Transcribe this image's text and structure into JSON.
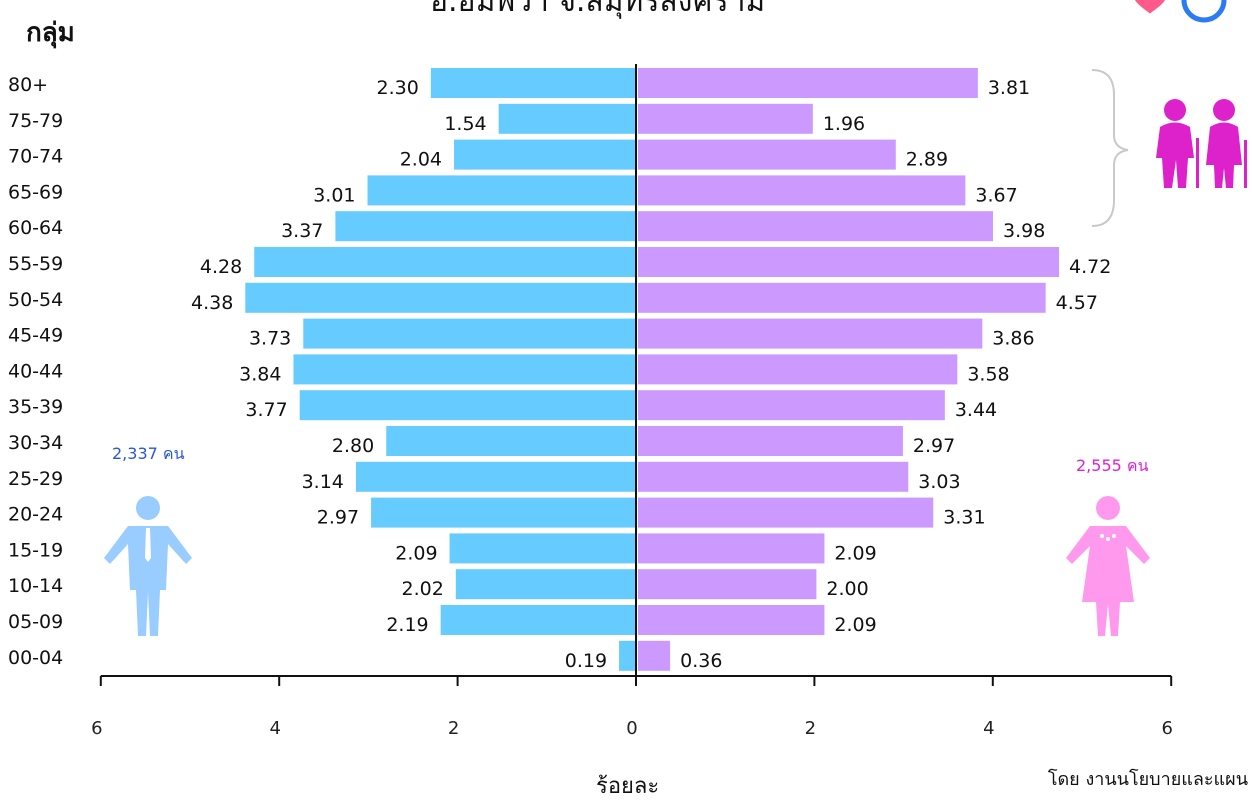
{
  "header": {
    "title": "อ.อัมพวา จ.สมุทรสงคราม",
    "group_label": "กลุ่ม"
  },
  "footer": {
    "credit": "โดย งานนโยบายและแผน"
  },
  "totals": {
    "male": "2,337 คน",
    "female": "2,555 คน",
    "male_color": "#2b57d6",
    "female_color": "#e21ed9"
  },
  "colors": {
    "male_bar": "#66ccff",
    "female_bar": "#cc99ff",
    "male_icon": "#99ccff",
    "female_icon": "#ff99ee",
    "elder_icon": "#dd22cc"
  },
  "icons": [
    "male-figure-icon",
    "female-figure-icon",
    "elderly-couple-icon",
    "heart-icon"
  ],
  "chart_data": {
    "type": "bar",
    "orientation": "horizontal",
    "subtype": "population-pyramid",
    "title": "อ.อัมพวา จ.สมุทรสงคราม",
    "ylabel": "กลุ่ม",
    "xlabel": "ร้อยละ",
    "xlim": [
      -6,
      6
    ],
    "x_ticks": [
      6,
      4,
      2,
      0,
      2,
      4,
      6
    ],
    "categories": [
      "80+",
      "75-79",
      "70-74",
      "65-69",
      "60-64",
      "55-59",
      "50-54",
      "45-49",
      "40-44",
      "35-39",
      "30-34",
      "25-29",
      "20-24",
      "15-19",
      "10-14",
      "05-09",
      "00-04"
    ],
    "series": [
      {
        "values": [
          2.3,
          1.54,
          2.04,
          3.01,
          3.37,
          4.28,
          4.38,
          3.73,
          3.84,
          3.77,
          2.8,
          3.14,
          2.97,
          2.09,
          2.02,
          2.19,
          0.19
        ]
      },
      {
        "values": [
          3.81,
          1.96,
          2.89,
          3.67,
          3.98,
          4.72,
          4.57,
          3.86,
          3.58,
          3.44,
          2.97,
          3.03,
          3.31,
          2.09,
          2.0,
          2.09,
          0.36
        ]
      }
    ],
    "value_labels": {
      "male": [
        "2.30",
        "1.54",
        "2.04",
        "3.01",
        "3.37",
        "4.28",
        "4.38",
        "3.73",
        "3.84",
        "3.77",
        "2.80",
        "3.14",
        "2.97",
        "2.09",
        "2.02",
        "2.19",
        "0.19"
      ],
      "female": [
        "3.81",
        "1.96",
        "2.89",
        "3.67",
        "3.98",
        "4.72",
        "4.57",
        "3.86",
        "3.58",
        "3.44",
        "2.97",
        "3.03",
        "3.31",
        "2.09",
        "2.00",
        "2.09",
        "0.36"
      ]
    }
  }
}
